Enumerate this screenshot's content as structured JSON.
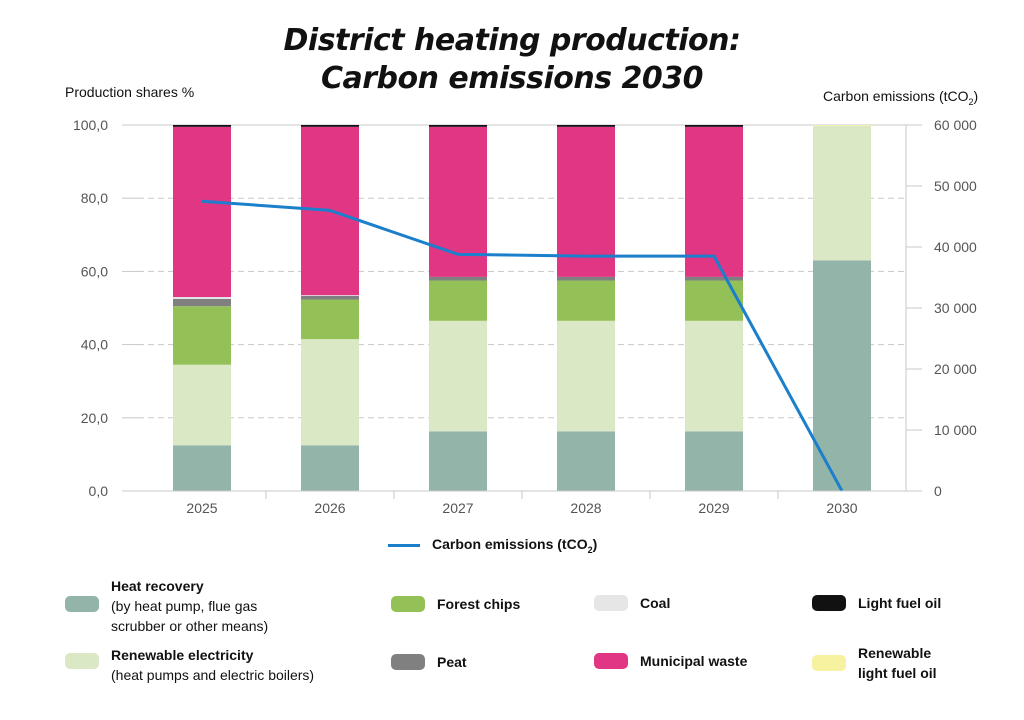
{
  "title": {
    "line1": "District heating production:",
    "line2": "Carbon emissions 2030"
  },
  "left_axis_title": "Production shares %",
  "right_axis_title": {
    "main": "Carbon emissions (tCO",
    "sub": "2",
    "end": ")"
  },
  "line_legend": {
    "main": "Carbon emissions (tCO",
    "sub": "2",
    "end": ")"
  },
  "legend": [
    {
      "name": "Heat recovery",
      "desc": [
        "(by heat pump, flue gas",
        "scrubber or other means)"
      ],
      "color": "#93b5a9",
      "key": "heat-recovery"
    },
    {
      "name": "Renewable electricity",
      "desc": [
        "(heat pumps and electric boilers)"
      ],
      "color": "#dbe8c6",
      "key": "renewable-electricity"
    },
    {
      "name": "Forest chips",
      "desc": [],
      "color": "#93c057",
      "key": "forest-chips"
    },
    {
      "name": "Peat",
      "desc": [],
      "color": "#808080",
      "key": "peat"
    },
    {
      "name": "Coal",
      "desc": [],
      "color": "#e6e6e6",
      "key": "coal"
    },
    {
      "name": "Municipal waste",
      "desc": [],
      "color": "#e03683",
      "key": "municipal-waste"
    },
    {
      "name": "Light fuel oil",
      "desc": [],
      "color": "#111111",
      "key": "light-fuel-oil"
    },
    {
      "name": "Renewable",
      "name2": "light fuel oil",
      "desc": [],
      "color": "#f6f2a0",
      "key": "renewable-light-fuel-oil"
    }
  ],
  "chart_data": {
    "type": "bar",
    "stacked": true,
    "categories": [
      "2025",
      "2026",
      "2027",
      "2028",
      "2029",
      "2030"
    ],
    "left_axis": {
      "ylim": [
        0,
        100
      ],
      "ticks": [
        "0,0",
        "20,0",
        "40,0",
        "60,0",
        "80,0",
        "100,0"
      ]
    },
    "right_axis": {
      "ylim": [
        0,
        60000
      ],
      "ticks": [
        "0",
        "10 000",
        "20 000",
        "30 000",
        "40 000",
        "50 000",
        "60 000"
      ]
    },
    "series": [
      {
        "name": "Heat recovery",
        "color": "#93b5a9",
        "values": [
          12.5,
          12.5,
          16.3,
          16.3,
          16.3,
          63.0
        ]
      },
      {
        "name": "Renewable electricity",
        "color": "#dbe8c6",
        "values": [
          22.0,
          29.0,
          30.2,
          30.2,
          30.2,
          36.8
        ]
      },
      {
        "name": "Forest chips",
        "color": "#93c057",
        "values": [
          16.0,
          10.8,
          11.0,
          11.0,
          11.0,
          0
        ]
      },
      {
        "name": "Peat",
        "color": "#808080",
        "values": [
          2.0,
          1.0,
          1.0,
          1.0,
          1.0,
          0
        ]
      },
      {
        "name": "Coal",
        "color": "#e6e6e6",
        "values": [
          0.5,
          0.2,
          0,
          0,
          0,
          0
        ]
      },
      {
        "name": "Municipal waste",
        "color": "#e03683",
        "values": [
          46.5,
          46.0,
          41.0,
          41.0,
          41.0,
          0
        ]
      },
      {
        "name": "Light fuel oil",
        "color": "#111111",
        "values": [
          0.5,
          0.5,
          0.5,
          0.5,
          0.5,
          0
        ]
      },
      {
        "name": "Renewable light fuel oil",
        "color": "#f6f2a0",
        "values": [
          0,
          0,
          0,
          0,
          0,
          0.2
        ]
      }
    ],
    "line": {
      "name": "Carbon emissions (tCO2)",
      "color": "#1b7fcc",
      "axis": "right",
      "values": [
        47500,
        46000,
        38800,
        38500,
        38500,
        0
      ]
    },
    "grid": true
  }
}
